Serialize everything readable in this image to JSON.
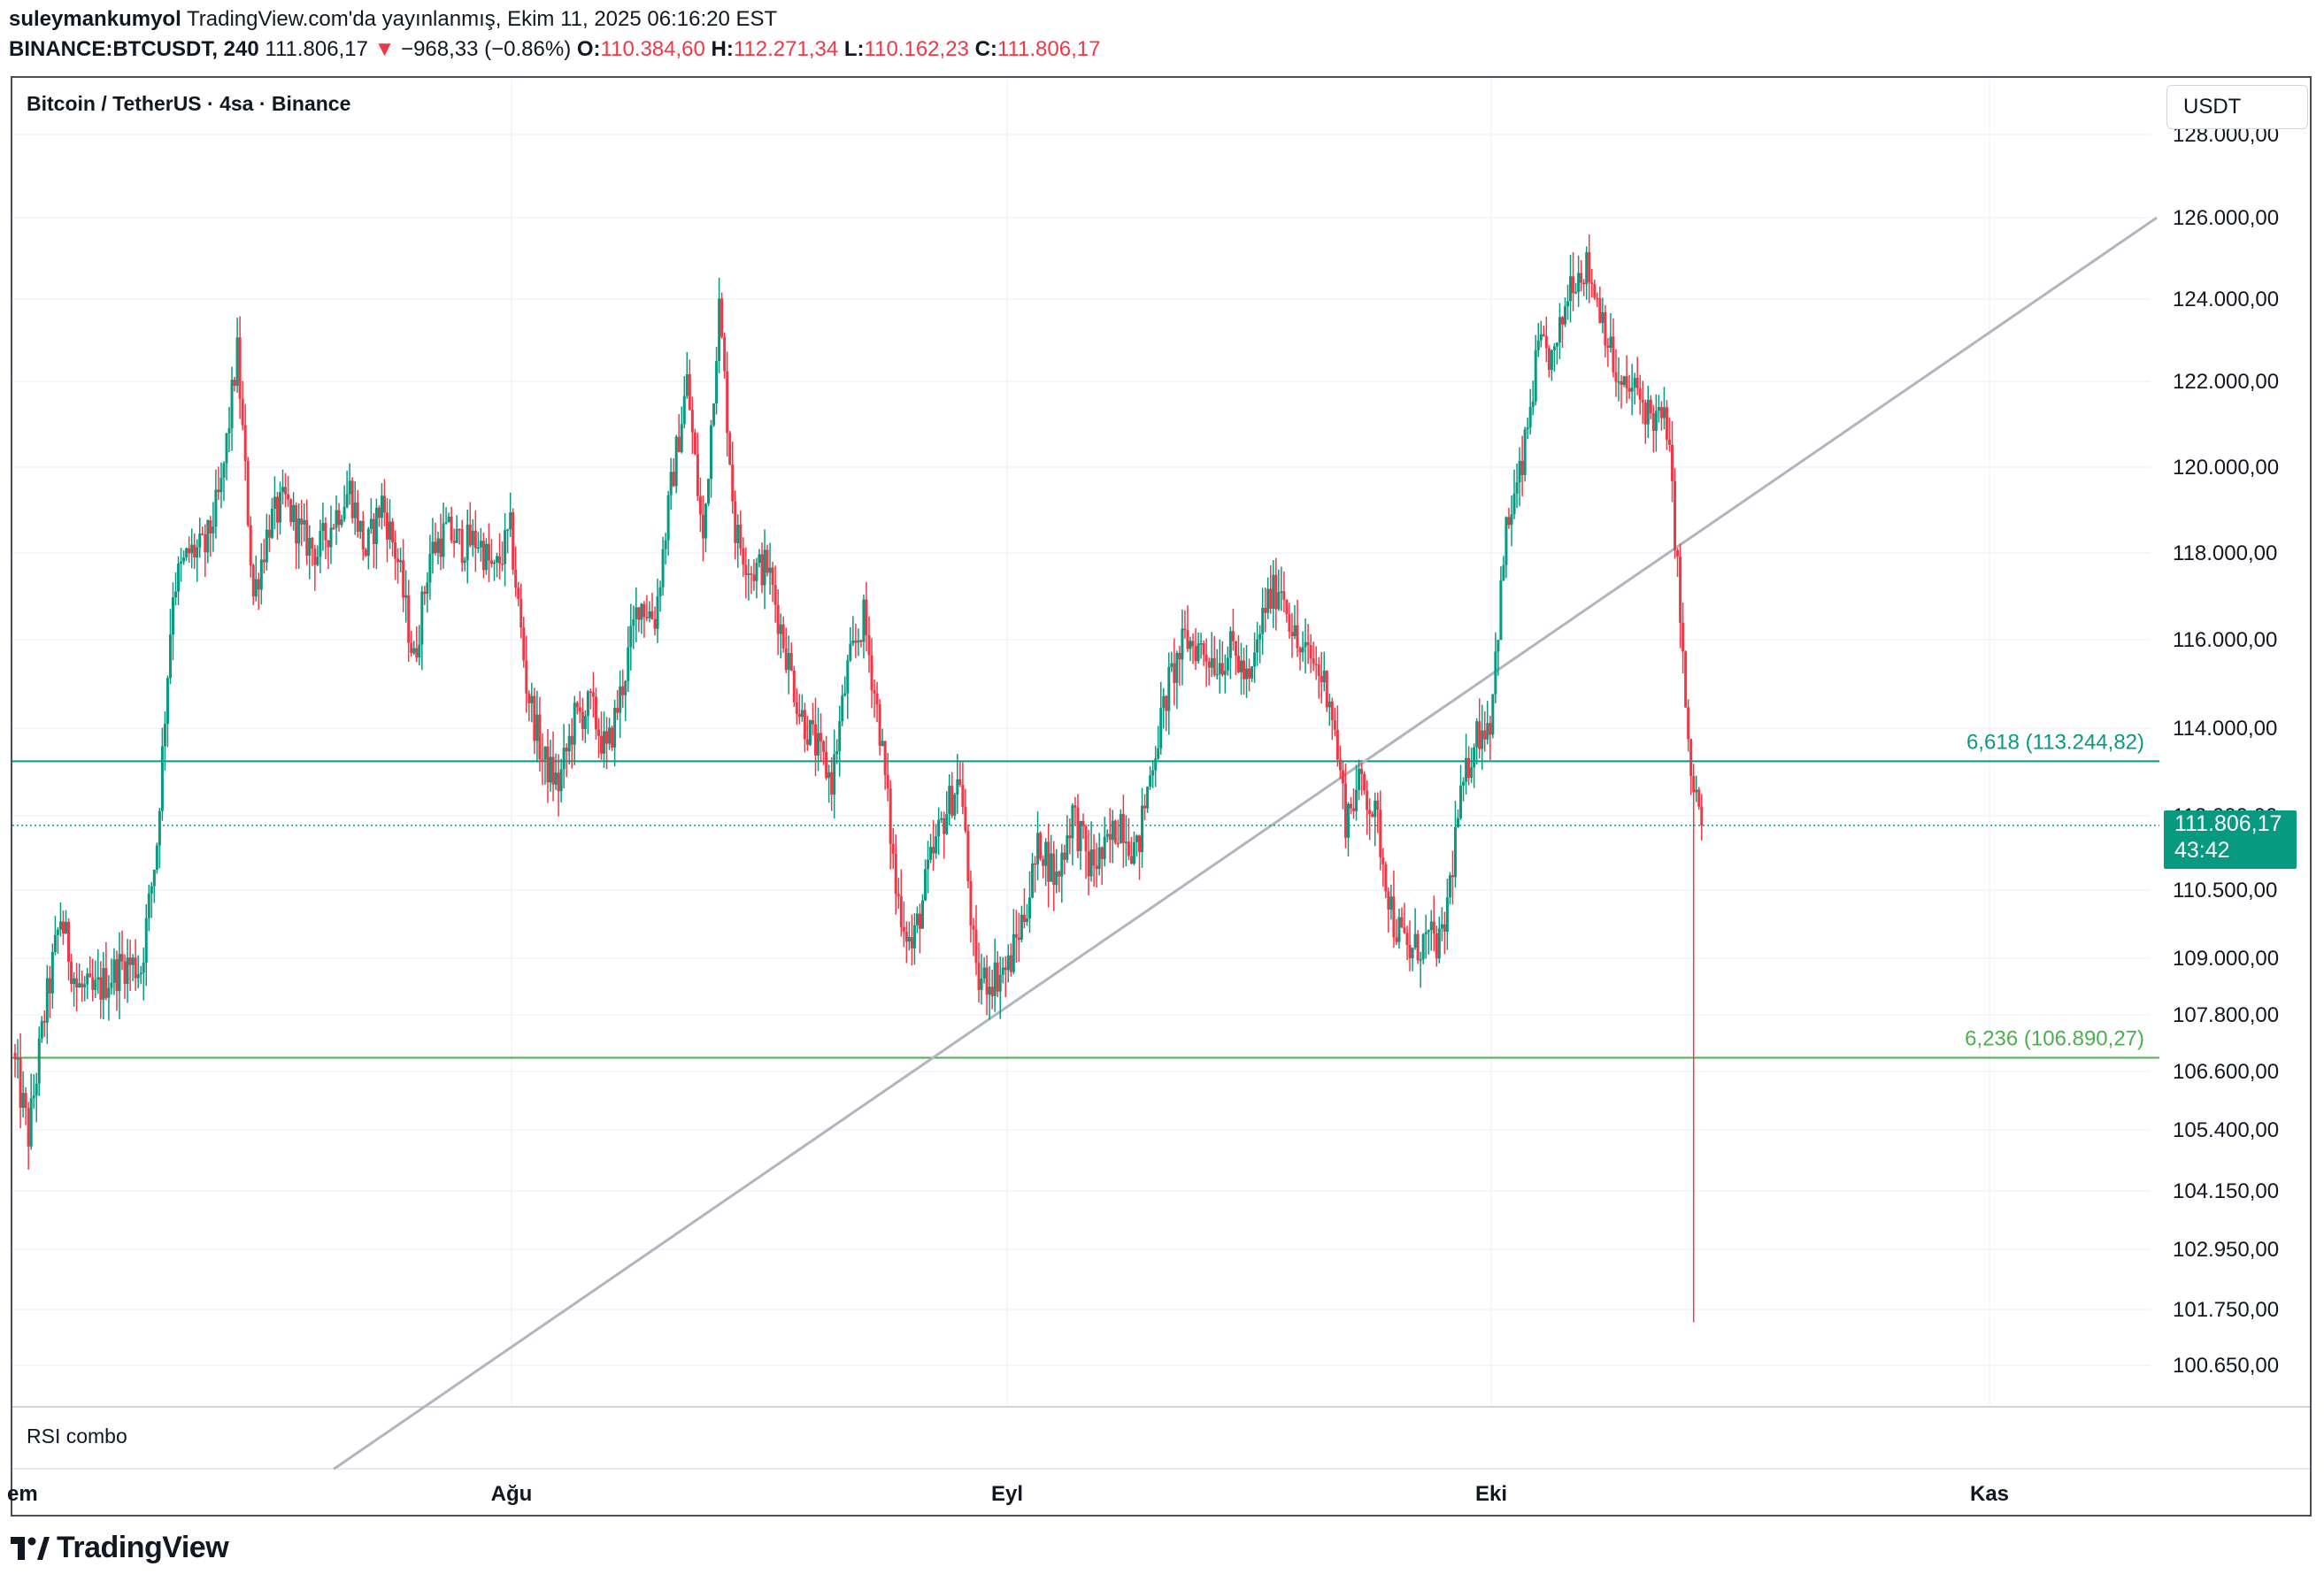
{
  "header": {
    "author": "suleymankumyol",
    "published": "TradingView.com'da yayınlanmış, Ekim 11, 2025 06:16:20 EST",
    "symbol": "BINANCE:BTCUSDT, 240",
    "last": "111.806,17",
    "arrow": "▼",
    "change": "−968,33 (−0.86%)",
    "o_label": "O:",
    "o_value": "110.384,60",
    "h_label": "H:",
    "h_value": "112.271,34",
    "l_label": "L:",
    "l_value": "110.162,23",
    "c_label": "C:",
    "c_value": "111.806,17"
  },
  "chart_title": "Bitcoin / TetherUS · 4sa · Binance",
  "currency": "USDT",
  "indicator_label": "RSI combo",
  "price_tag": {
    "price": "111.806,17",
    "countdown": "43:42"
  },
  "branding": "TradingView",
  "colors": {
    "up": "#089981",
    "down": "#f23645",
    "fib_teal": "#089981",
    "fib_green": "#4caf50",
    "trend": "#b2b5be"
  },
  "chart_data": {
    "type": "candlestick",
    "title": "Bitcoin / TetherUS · 4sa · Binance",
    "y_axis_ticks": [
      {
        "value": 128000,
        "label": "128.000,00"
      },
      {
        "value": 126000,
        "label": "126.000,00"
      },
      {
        "value": 124000,
        "label": "124.000,00"
      },
      {
        "value": 122000,
        "label": "122.000,00"
      },
      {
        "value": 120000,
        "label": "120.000,00"
      },
      {
        "value": 118000,
        "label": "118.000,00"
      },
      {
        "value": 116000,
        "label": "116.000,00"
      },
      {
        "value": 114000,
        "label": "114.000,00"
      },
      {
        "value": 112000,
        "label": "112.000,00"
      },
      {
        "value": 110500,
        "label": "110.500,00"
      },
      {
        "value": 109000,
        "label": "109.000,00"
      },
      {
        "value": 107800,
        "label": "107.800,00"
      },
      {
        "value": 106600,
        "label": "106.600,00"
      },
      {
        "value": 105400,
        "label": "105.400,00"
      },
      {
        "value": 104150,
        "label": "104.150,00"
      },
      {
        "value": 102950,
        "label": "102.950,00"
      },
      {
        "value": 101750,
        "label": "101.750,00"
      },
      {
        "value": 100650,
        "label": "100.650,00"
      }
    ],
    "x_axis_labels": [
      {
        "label": "Tem",
        "day": 0
      },
      {
        "label": "Ağu",
        "day": 31
      },
      {
        "label": "Eyl",
        "day": 62
      },
      {
        "label": "Eki",
        "day": 92
      },
      {
        "label": "Kas",
        "day": 123
      }
    ],
    "horizontal_levels": [
      {
        "label": "6,618 (113.244,82)",
        "price": 113244.82,
        "color": "#089981"
      },
      {
        "label": "6,236 (106.890,27)",
        "price": 106890.27,
        "color": "#4caf50"
      }
    ],
    "trend_line": {
      "start": {
        "day": 20,
        "price": 98600
      },
      "end": {
        "day": 133.5,
        "price": 126000
      },
      "color": "#b2b5be"
    },
    "last_price": 111806.17,
    "keypoints": [
      {
        "day": 0,
        "price": 107000
      },
      {
        "day": 1,
        "price": 105300
      },
      {
        "day": 2,
        "price": 107800
      },
      {
        "day": 3,
        "price": 109900
      },
      {
        "day": 4,
        "price": 108400
      },
      {
        "day": 5,
        "price": 108200
      },
      {
        "day": 6,
        "price": 108600
      },
      {
        "day": 7,
        "price": 108900
      },
      {
        "day": 8,
        "price": 108800
      },
      {
        "day": 9,
        "price": 111500
      },
      {
        "day": 10,
        "price": 117200
      },
      {
        "day": 11,
        "price": 118000
      },
      {
        "day": 12,
        "price": 118100
      },
      {
        "day": 13,
        "price": 119500
      },
      {
        "day": 14,
        "price": 122700
      },
      {
        "day": 15,
        "price": 117000
      },
      {
        "day": 16,
        "price": 118700
      },
      {
        "day": 17,
        "price": 119200
      },
      {
        "day": 18,
        "price": 118400
      },
      {
        "day": 19,
        "price": 118000
      },
      {
        "day": 20,
        "price": 118800
      },
      {
        "day": 21,
        "price": 119500
      },
      {
        "day": 22,
        "price": 118000
      },
      {
        "day": 23,
        "price": 119200
      },
      {
        "day": 24,
        "price": 117800
      },
      {
        "day": 25,
        "price": 115500
      },
      {
        "day": 26,
        "price": 118000
      },
      {
        "day": 27,
        "price": 118500
      },
      {
        "day": 28,
        "price": 118200
      },
      {
        "day": 29,
        "price": 118300
      },
      {
        "day": 30,
        "price": 117500
      },
      {
        "day": 31,
        "price": 118500
      },
      {
        "day": 32,
        "price": 115000
      },
      {
        "day": 33,
        "price": 113300
      },
      {
        "day": 34,
        "price": 112700
      },
      {
        "day": 35,
        "price": 114200
      },
      {
        "day": 36,
        "price": 114500
      },
      {
        "day": 37,
        "price": 113400
      },
      {
        "day": 38,
        "price": 115000
      },
      {
        "day": 39,
        "price": 116900
      },
      {
        "day": 40,
        "price": 116500
      },
      {
        "day": 41,
        "price": 119500
      },
      {
        "day": 42,
        "price": 122000
      },
      {
        "day": 43,
        "price": 118200
      },
      {
        "day": 44,
        "price": 123800
      },
      {
        "day": 45,
        "price": 118500
      },
      {
        "day": 46,
        "price": 117600
      },
      {
        "day": 47,
        "price": 117700
      },
      {
        "day": 48,
        "price": 116000
      },
      {
        "day": 49,
        "price": 114400
      },
      {
        "day": 50,
        "price": 113600
      },
      {
        "day": 51,
        "price": 112800
      },
      {
        "day": 52,
        "price": 115300
      },
      {
        "day": 53,
        "price": 116500
      },
      {
        "day": 54,
        "price": 114000
      },
      {
        "day": 55,
        "price": 110500
      },
      {
        "day": 56,
        "price": 109200
      },
      {
        "day": 57,
        "price": 110800
      },
      {
        "day": 58,
        "price": 112000
      },
      {
        "day": 59,
        "price": 112900
      },
      {
        "day": 60,
        "price": 108500
      },
      {
        "day": 61,
        "price": 108600
      },
      {
        "day": 62,
        "price": 108800
      },
      {
        "day": 63,
        "price": 110000
      },
      {
        "day": 64,
        "price": 111500
      },
      {
        "day": 65,
        "price": 110700
      },
      {
        "day": 66,
        "price": 112100
      },
      {
        "day": 67,
        "price": 111000
      },
      {
        "day": 68,
        "price": 111200
      },
      {
        "day": 69,
        "price": 112000
      },
      {
        "day": 70,
        "price": 111200
      },
      {
        "day": 71,
        "price": 113300
      },
      {
        "day": 72,
        "price": 115000
      },
      {
        "day": 73,
        "price": 116000
      },
      {
        "day": 74,
        "price": 115800
      },
      {
        "day": 75,
        "price": 115500
      },
      {
        "day": 76,
        "price": 115800
      },
      {
        "day": 77,
        "price": 114900
      },
      {
        "day": 78,
        "price": 116800
      },
      {
        "day": 79,
        "price": 117300
      },
      {
        "day": 80,
        "price": 115800
      },
      {
        "day": 81,
        "price": 115500
      },
      {
        "day": 82,
        "price": 114800
      },
      {
        "day": 83,
        "price": 112000
      },
      {
        "day": 84,
        "price": 112800
      },
      {
        "day": 85,
        "price": 111800
      },
      {
        "day": 86,
        "price": 109800
      },
      {
        "day": 87,
        "price": 109100
      },
      {
        "day": 88,
        "price": 109400
      },
      {
        "day": 89,
        "price": 109300
      },
      {
        "day": 90,
        "price": 112000
      },
      {
        "day": 91,
        "price": 113800
      },
      {
        "day": 92,
        "price": 114200
      },
      {
        "day": 93,
        "price": 118500
      },
      {
        "day": 94,
        "price": 120000
      },
      {
        "day": 95,
        "price": 122800
      },
      {
        "day": 96,
        "price": 122500
      },
      {
        "day": 97,
        "price": 124500
      },
      {
        "day": 98,
        "price": 124800
      },
      {
        "day": 99,
        "price": 123600
      },
      {
        "day": 100,
        "price": 121800
      },
      {
        "day": 101,
        "price": 121800
      },
      {
        "day": 102,
        "price": 121200
      },
      {
        "day": 103,
        "price": 121000
      },
      {
        "day": 103.6,
        "price": 118000
      },
      {
        "day": 104.4,
        "price": 113000
      },
      {
        "day": 105.3,
        "price": 111806
      }
    ]
  }
}
